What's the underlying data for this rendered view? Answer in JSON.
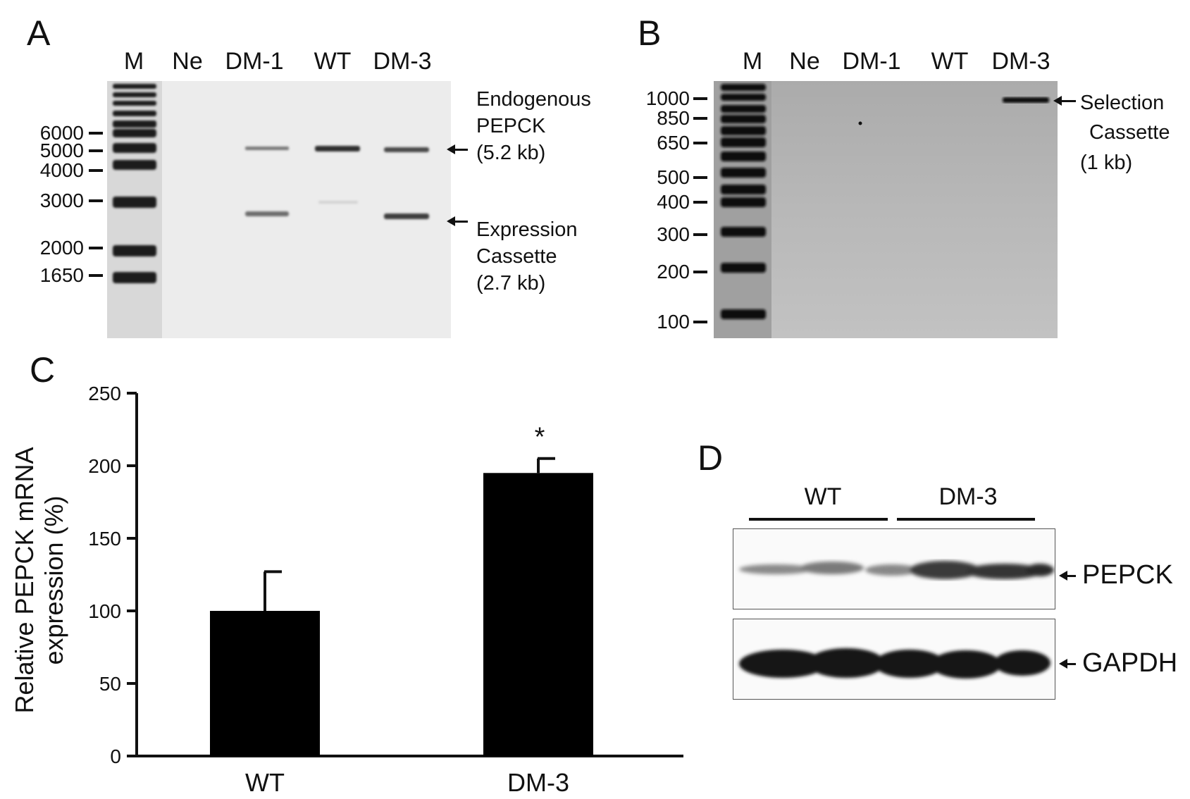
{
  "panel_a": {
    "letter": "A",
    "lanes": [
      "M",
      "Ne",
      "DM-1",
      "WT",
      "DM-3"
    ],
    "ladder_labels": [
      "6000",
      "5000",
      "4000",
      "3000",
      "2000",
      "1650"
    ],
    "annotation_top": [
      "Endogenous",
      "PEPCK",
      "(5.2 kb)"
    ],
    "annotation_bottom": [
      "Expression",
      "Cassette",
      "(2.7 kb)"
    ]
  },
  "panel_b": {
    "letter": "B",
    "lanes": [
      "M",
      "Ne",
      "DM-1",
      "WT",
      "DM-3"
    ],
    "ladder_labels": [
      "1000",
      "850",
      "650",
      "500",
      "400",
      "300",
      "200",
      "100"
    ],
    "annotation": [
      "Selection",
      "Cassette",
      "(1 kb)"
    ]
  },
  "panel_c": {
    "letter": "C",
    "significance_marker": "*"
  },
  "panel_d": {
    "letter": "D",
    "groups": [
      "WT",
      "DM-3"
    ],
    "bands": [
      "PEPCK",
      "GAPDH"
    ]
  },
  "chart_data": {
    "type": "bar",
    "categories": [
      "WT",
      "DM-3"
    ],
    "values": [
      100,
      195
    ],
    "errors": [
      27,
      10
    ],
    "ylabel": "Relative PEPCK mRNA expression (%)",
    "xlabel": "",
    "ylim": [
      0,
      250
    ],
    "yticks": [
      0,
      50,
      100,
      150,
      200,
      250
    ],
    "significance": [
      "",
      "*"
    ],
    "bar_color": "#000000",
    "grid": false
  }
}
